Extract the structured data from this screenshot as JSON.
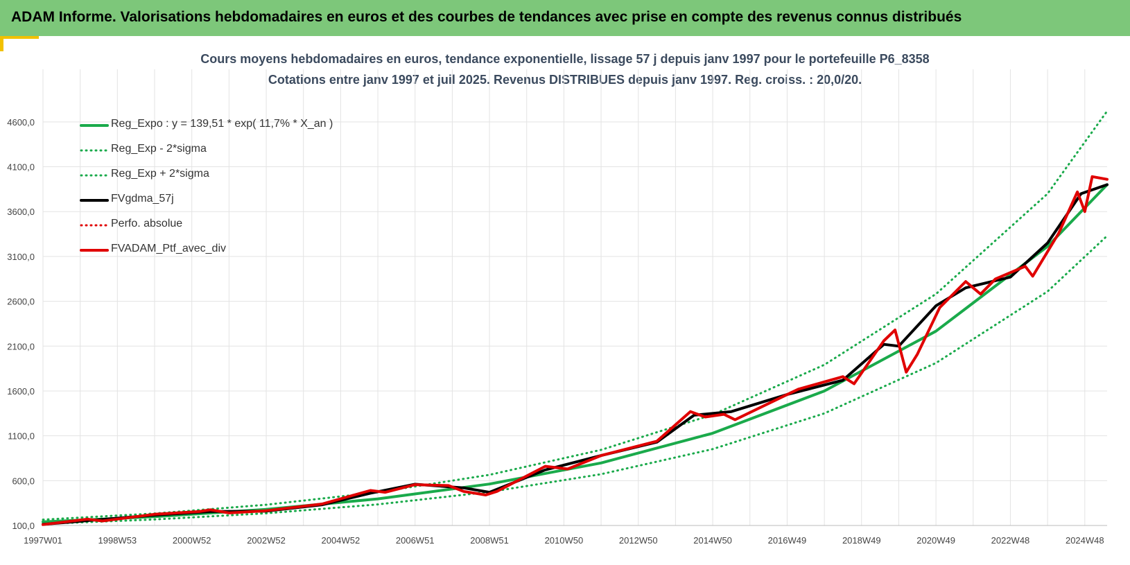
{
  "header": {
    "title": "ADAM Informe. Valorisations hebdomadaires en euros et des courbes de tendances avec prise en compte des revenus connus distribués"
  },
  "colors": {
    "banner": "#7dc77a",
    "accent_corner": "#f2c100",
    "trend_green": "#1aaa4b",
    "series_red": "#e00000",
    "series_black": "#000000",
    "grid": "#e3e3e3"
  },
  "chart_data": {
    "type": "line",
    "title": "Cours moyens hebdomadaires  en euros, tendance exponentielle, lissage 57 j depuis janv 1997 pour le portefeuille P6_8358",
    "subtitle": "Cotations  entre janv 1997 et juil 2025. Revenus DISTRIBUES depuis janv 1997. Reg. croiss. : 20,0/20.",
    "xlabel": "",
    "ylabel": "",
    "x_range": [
      1997.0,
      2025.6
    ],
    "ylim": [
      100,
      4800
    ],
    "y_ticks": [
      100,
      600,
      1100,
      1600,
      2100,
      2600,
      3100,
      3600,
      4100,
      4600
    ],
    "y_tick_labels": [
      "100,0",
      "600,0",
      "1100,0",
      "1600,0",
      "2100,0",
      "2600,0",
      "3100,0",
      "3600,0",
      "4100,0",
      "4600,0"
    ],
    "x_ticks": [
      1997.0,
      1999.0,
      2001.0,
      2003.0,
      2005.0,
      2007.0,
      2009.0,
      2011.0,
      2013.0,
      2015.0,
      2017.0,
      2019.0,
      2021.0,
      2023.0,
      2025.0
    ],
    "x_tick_labels": [
      "1997W01",
      "1998W53",
      "2000W52",
      "2002W52",
      "2004W52",
      "2006W51",
      "2008W51",
      "2010W50",
      "2012W50",
      "2014W50",
      "2016W49",
      "2018W49",
      "2020W49",
      "2022W48",
      "2024W48"
    ],
    "grid": true,
    "legend_position": "top-left",
    "series": [
      {
        "name": "Reg_Expo : y = 139,51 * exp( 11,7% *  X_an )",
        "style": "solid",
        "color": "#1aaa4b",
        "x": [
          1997,
          2000,
          2003,
          2006,
          2009,
          2012,
          2015,
          2018,
          2021,
          2024,
          2025.6
        ],
        "y": [
          140,
          198,
          280,
          397,
          562,
          797,
          1129,
          1600,
          2267,
          3212,
          3900
        ]
      },
      {
        "name": "Reg_Exp - 2*sigma",
        "style": "dotted",
        "color": "#1aaa4b",
        "x": [
          1997,
          2000,
          2003,
          2006,
          2009,
          2012,
          2015,
          2018,
          2021,
          2024,
          2025.6
        ],
        "y": [
          118,
          167,
          236,
          335,
          474,
          672,
          952,
          1350,
          1912,
          2710,
          3330
        ]
      },
      {
        "name": "Reg_Exp + 2*sigma",
        "style": "dotted",
        "color": "#1aaa4b",
        "x": [
          1997,
          2000,
          2003,
          2006,
          2009,
          2012,
          2015,
          2018,
          2021,
          2024,
          2025.6
        ],
        "y": [
          165,
          234,
          331,
          470,
          665,
          943,
          1336,
          1892,
          2681,
          3800,
          4720
        ]
      },
      {
        "name": "FVgdma_57j",
        "style": "solid",
        "color": "#000000",
        "x": [
          1997,
          1998.5,
          2000,
          2001.5,
          2003,
          2004.5,
          2005.8,
          2007,
          2008.3,
          2009,
          2010.5,
          2012,
          2013.5,
          2014.5,
          2015.5,
          2017,
          2018.5,
          2019.6,
          2020,
          2021,
          2021.8,
          2023,
          2024,
          2024.9,
          2025.6
        ],
        "y": [
          112,
          165,
          215,
          255,
          260,
          330,
          460,
          560,
          520,
          470,
          720,
          880,
          1030,
          1330,
          1370,
          1560,
          1720,
          2120,
          2100,
          2550,
          2750,
          2870,
          3250,
          3800,
          3900
        ]
      },
      {
        "name": "Perfo. absolue",
        "style": "dotted",
        "color": "#e00000",
        "x": [],
        "y": []
      },
      {
        "name": "FVADAM_Ptf_avec_div",
        "style": "solid",
        "color": "#e00000",
        "x": [
          1997,
          1998.2,
          1998.6,
          2000,
          2001.2,
          2001.5,
          2002,
          2003,
          2004.5,
          2005.8,
          2006.2,
          2007,
          2007.9,
          2008.3,
          2008.9,
          2009.2,
          2010.5,
          2011.1,
          2012,
          2013.5,
          2014.4,
          2014.8,
          2015.3,
          2015.6,
          2016.5,
          2017.3,
          2018.5,
          2018.8,
          2019.6,
          2019.9,
          2020.2,
          2020.5,
          2021.1,
          2021.8,
          2022.2,
          2022.6,
          2023.4,
          2023.6,
          2024.3,
          2024.8,
          2025.0,
          2025.2,
          2025.6
        ],
        "y": [
          110,
          170,
          150,
          225,
          255,
          275,
          240,
          265,
          340,
          490,
          470,
          555,
          545,
          480,
          440,
          480,
          760,
          730,
          880,
          1040,
          1370,
          1310,
          1340,
          1280,
          1460,
          1620,
          1760,
          1680,
          2160,
          2280,
          1810,
          2010,
          2530,
          2820,
          2680,
          2850,
          2990,
          2880,
          3360,
          3820,
          3600,
          3990,
          3960
        ]
      }
    ]
  }
}
